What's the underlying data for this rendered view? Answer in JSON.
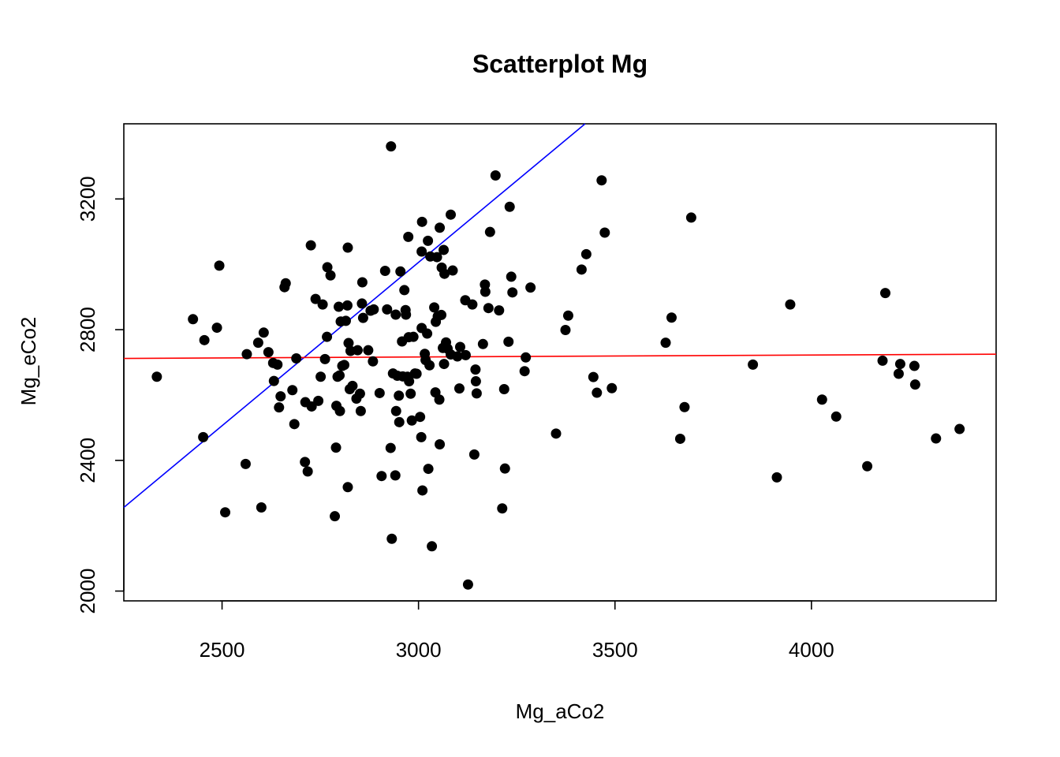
{
  "chart_data": {
    "type": "scatter",
    "title": "Scatterplot Mg",
    "xlabel": "Mg_aCo2",
    "ylabel": "Mg_eCo2",
    "xlim": [
      2250,
      4470
    ],
    "ylim": [
      1970,
      3430
    ],
    "xticks": [
      2500,
      3000,
      3500,
      4000
    ],
    "yticks": [
      2000,
      2400,
      2800,
      3200
    ],
    "grid": false,
    "legend": "none",
    "point_color": "#000000",
    "lines": [
      {
        "color": "#0000ff",
        "points": [
          [
            2250,
            2256
          ],
          [
            3424,
            3430
          ]
        ]
      },
      {
        "color": "#ff0000",
        "points": [
          [
            2250,
            2712
          ],
          [
            4470,
            2725
          ]
        ]
      }
    ],
    "points": [
      [
        2334,
        2656
      ],
      [
        2426,
        2832
      ],
      [
        2452,
        2471
      ],
      [
        2455,
        2768
      ],
      [
        2487,
        2806
      ],
      [
        2493,
        2996
      ],
      [
        2508,
        2241
      ],
      [
        2560,
        2389
      ],
      [
        2563,
        2725
      ],
      [
        2592,
        2760
      ],
      [
        2600,
        2256
      ],
      [
        2606,
        2791
      ],
      [
        2618,
        2731
      ],
      [
        2630,
        2698
      ],
      [
        2632,
        2643
      ],
      [
        2641,
        2693
      ],
      [
        2645,
        2562
      ],
      [
        2649,
        2596
      ],
      [
        2659,
        2930
      ],
      [
        2662,
        2942
      ],
      [
        2679,
        2615
      ],
      [
        2684,
        2511
      ],
      [
        2689,
        2712
      ],
      [
        2711,
        2395
      ],
      [
        2712,
        2578
      ],
      [
        2718,
        2366
      ],
      [
        2726,
        3058
      ],
      [
        2728,
        2565
      ],
      [
        2738,
        2894
      ],
      [
        2745,
        2582
      ],
      [
        2751,
        2656
      ],
      [
        2756,
        2877
      ],
      [
        2762,
        2710
      ],
      [
        2767,
        2778
      ],
      [
        2768,
        2991
      ],
      [
        2776,
        2966
      ],
      [
        2787,
        2229
      ],
      [
        2790,
        2439
      ],
      [
        2791,
        2567
      ],
      [
        2794,
        2656
      ],
      [
        2797,
        2870
      ],
      [
        2799,
        2660
      ],
      [
        2800,
        2551
      ],
      [
        2802,
        2825
      ],
      [
        2806,
        2689
      ],
      [
        2811,
        2692
      ],
      [
        2815,
        2827
      ],
      [
        2819,
        2874
      ],
      [
        2820,
        3051
      ],
      [
        2820,
        2318
      ],
      [
        2822,
        2759
      ],
      [
        2825,
        2618
      ],
      [
        2827,
        2735
      ],
      [
        2832,
        2628
      ],
      [
        2842,
        2589
      ],
      [
        2845,
        2737
      ],
      [
        2851,
        2604
      ],
      [
        2853,
        2551
      ],
      [
        2856,
        2880
      ],
      [
        2857,
        2945
      ],
      [
        2859,
        2836
      ],
      [
        2872,
        2737
      ],
      [
        2878,
        2858
      ],
      [
        2884,
        2703
      ],
      [
        2886,
        2862
      ],
      [
        2901,
        2606
      ],
      [
        2906,
        2352
      ],
      [
        2915,
        2980
      ],
      [
        2920,
        2862
      ],
      [
        2929,
        2438
      ],
      [
        2930,
        3361
      ],
      [
        2932,
        2160
      ],
      [
        2935,
        2666
      ],
      [
        2941,
        2354
      ],
      [
        2942,
        2846
      ],
      [
        2943,
        2551
      ],
      [
        2946,
        2659
      ],
      [
        2950,
        2598
      ],
      [
        2951,
        2517
      ],
      [
        2954,
        2978
      ],
      [
        2958,
        2764
      ],
      [
        2960,
        2657
      ],
      [
        2964,
        2921
      ],
      [
        2967,
        2860
      ],
      [
        2968,
        2846
      ],
      [
        2972,
        2656
      ],
      [
        2974,
        3084
      ],
      [
        2975,
        2777
      ],
      [
        2976,
        2642
      ],
      [
        2980,
        2604
      ],
      [
        2983,
        2522
      ],
      [
        2987,
        2778
      ],
      [
        2991,
        2666
      ],
      [
        2995,
        2665
      ],
      [
        3004,
        2533
      ],
      [
        3007,
        2471
      ],
      [
        3008,
        2805
      ],
      [
        3008,
        3039
      ],
      [
        3009,
        3130
      ],
      [
        3010,
        2308
      ],
      [
        3016,
        2726
      ],
      [
        3018,
        2707
      ],
      [
        3022,
        2788
      ],
      [
        3024,
        3072
      ],
      [
        3025,
        2374
      ],
      [
        3028,
        2691
      ],
      [
        3030,
        3024
      ],
      [
        3034,
        2137
      ],
      [
        3040,
        2868
      ],
      [
        3043,
        2608
      ],
      [
        3044,
        2824
      ],
      [
        3047,
        3022
      ],
      [
        3049,
        2841
      ],
      [
        3053,
        2586
      ],
      [
        3054,
        3112
      ],
      [
        3054,
        2449
      ],
      [
        3058,
        2845
      ],
      [
        3059,
        2990
      ],
      [
        3062,
        2744
      ],
      [
        3064,
        3044
      ],
      [
        3065,
        2695
      ],
      [
        3066,
        2971
      ],
      [
        3070,
        2761
      ],
      [
        3074,
        2742
      ],
      [
        3082,
        3152
      ],
      [
        3082,
        2724
      ],
      [
        3087,
        2981
      ],
      [
        3099,
        2718
      ],
      [
        3104,
        2620
      ],
      [
        3106,
        2747
      ],
      [
        3119,
        2890
      ],
      [
        3120,
        2722
      ],
      [
        3126,
        2020
      ],
      [
        3137,
        2877
      ],
      [
        3142,
        2418
      ],
      [
        3145,
        2678
      ],
      [
        3146,
        2642
      ],
      [
        3148,
        2605
      ],
      [
        3164,
        2756
      ],
      [
        3169,
        2938
      ],
      [
        3170,
        2916
      ],
      [
        3178,
        2866
      ],
      [
        3182,
        3099
      ],
      [
        3196,
        3272
      ],
      [
        3205,
        2859
      ],
      [
        3213,
        2253
      ],
      [
        3218,
        2618
      ],
      [
        3220,
        2375
      ],
      [
        3229,
        2763
      ],
      [
        3232,
        3176
      ],
      [
        3236,
        2962
      ],
      [
        3239,
        2914
      ],
      [
        3270,
        2673
      ],
      [
        3273,
        2715
      ],
      [
        3285,
        2929
      ],
      [
        3350,
        2482
      ],
      [
        3374,
        2799
      ],
      [
        3381,
        2843
      ],
      [
        3415,
        2984
      ],
      [
        3427,
        3031
      ],
      [
        3445,
        2655
      ],
      [
        3454,
        2607
      ],
      [
        3466,
        3257
      ],
      [
        3474,
        3097
      ],
      [
        3492,
        2621
      ],
      [
        3629,
        2760
      ],
      [
        3644,
        2837
      ],
      [
        3666,
        2466
      ],
      [
        3677,
        2563
      ],
      [
        3694,
        3143
      ],
      [
        3851,
        2693
      ],
      [
        3912,
        2348
      ],
      [
        3946,
        2877
      ],
      [
        4027,
        2586
      ],
      [
        4063,
        2534
      ],
      [
        4142,
        2382
      ],
      [
        4181,
        2705
      ],
      [
        4188,
        2912
      ],
      [
        4222,
        2665
      ],
      [
        4226,
        2695
      ],
      [
        4262,
        2689
      ],
      [
        4264,
        2632
      ],
      [
        4317,
        2467
      ],
      [
        4377,
        2496
      ]
    ]
  }
}
